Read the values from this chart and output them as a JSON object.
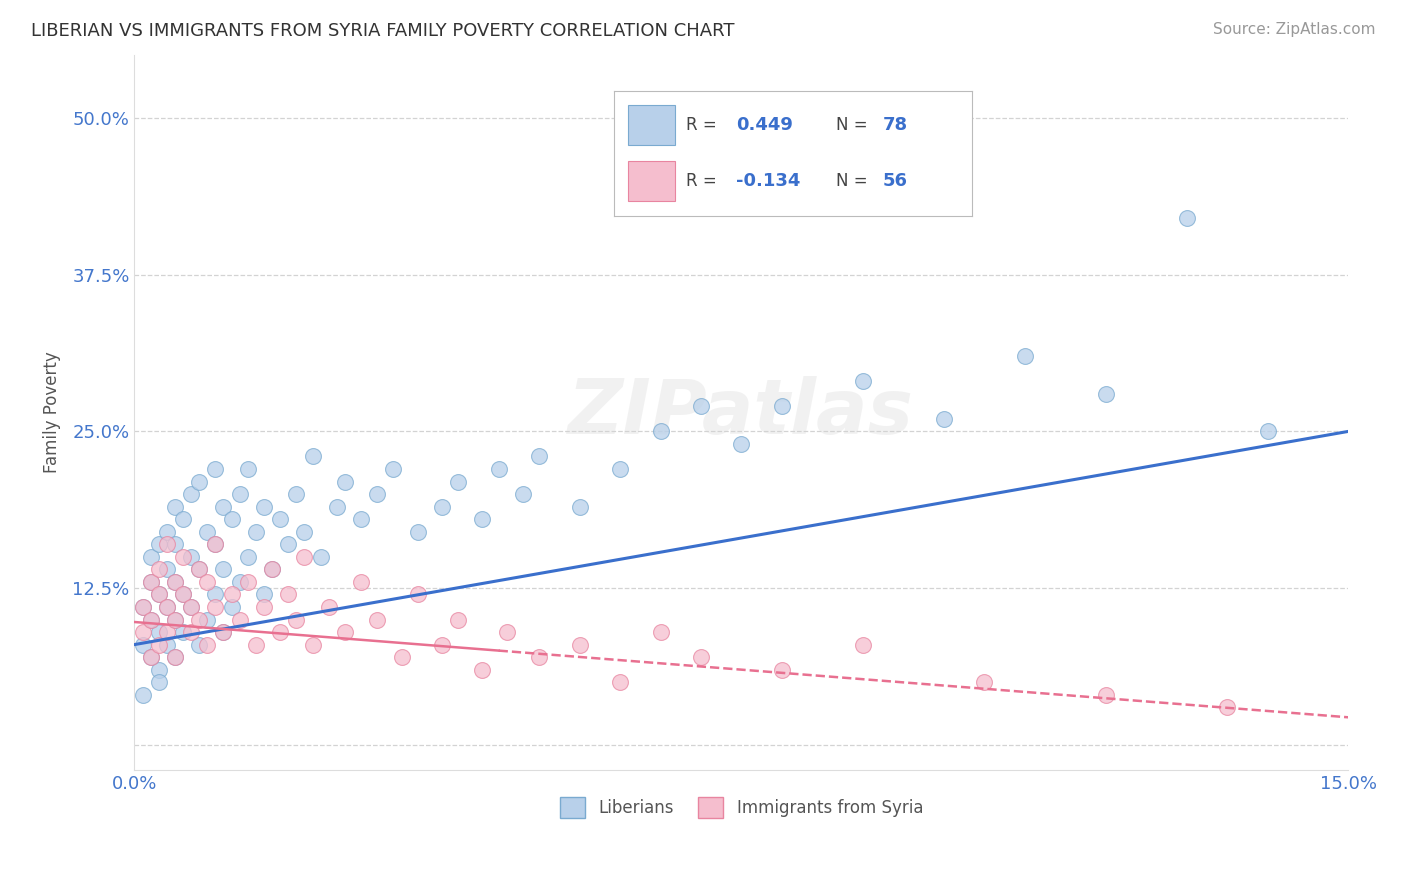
{
  "title": "LIBERIAN VS IMMIGRANTS FROM SYRIA FAMILY POVERTY CORRELATION CHART",
  "source": "Source: ZipAtlas.com",
  "ylabel_label": "Family Poverty",
  "xlim": [
    0.0,
    0.15
  ],
  "ylim": [
    -0.02,
    0.55
  ],
  "xtick_positions": [
    0.0,
    0.05,
    0.1,
    0.15
  ],
  "xticklabels": [
    "0.0%",
    "",
    "",
    "15.0%"
  ],
  "ytick_positions": [
    0.0,
    0.125,
    0.25,
    0.375,
    0.5
  ],
  "yticklabels": [
    "",
    "12.5%",
    "25.0%",
    "37.5%",
    "50.0%"
  ],
  "grid_color": "#c8c8c8",
  "background_color": "#ffffff",
  "watermark": "ZIPatlas",
  "series1_color": "#b8d0ea",
  "series1_edge": "#7aaad0",
  "series2_color": "#f5bece",
  "series2_edge": "#e885a0",
  "trend1_color": "#3a6fcc",
  "trend2_color": "#e87090",
  "legend_label1": "Liberians",
  "legend_label2": "Immigrants from Syria",
  "R1": 0.449,
  "N1": 78,
  "R2": -0.134,
  "N2": 56,
  "trend1_x0": 0.0,
  "trend1_y0": 0.08,
  "trend1_x1": 0.15,
  "trend1_y1": 0.25,
  "trend2_x0": 0.0,
  "trend2_y0": 0.098,
  "trend2_x1": 0.15,
  "trend2_y1": 0.022,
  "liberian_x": [
    0.001,
    0.001,
    0.001,
    0.002,
    0.002,
    0.002,
    0.002,
    0.003,
    0.003,
    0.003,
    0.003,
    0.003,
    0.004,
    0.004,
    0.004,
    0.004,
    0.005,
    0.005,
    0.005,
    0.005,
    0.005,
    0.006,
    0.006,
    0.006,
    0.007,
    0.007,
    0.007,
    0.008,
    0.008,
    0.008,
    0.009,
    0.009,
    0.01,
    0.01,
    0.01,
    0.011,
    0.011,
    0.011,
    0.012,
    0.012,
    0.013,
    0.013,
    0.014,
    0.014,
    0.015,
    0.016,
    0.016,
    0.017,
    0.018,
    0.019,
    0.02,
    0.021,
    0.022,
    0.023,
    0.025,
    0.026,
    0.028,
    0.03,
    0.032,
    0.035,
    0.038,
    0.04,
    0.043,
    0.045,
    0.048,
    0.05,
    0.055,
    0.06,
    0.065,
    0.07,
    0.075,
    0.08,
    0.09,
    0.1,
    0.11,
    0.12,
    0.13,
    0.14
  ],
  "liberian_y": [
    0.08,
    0.11,
    0.04,
    0.1,
    0.13,
    0.07,
    0.15,
    0.09,
    0.12,
    0.06,
    0.16,
    0.05,
    0.11,
    0.14,
    0.08,
    0.17,
    0.1,
    0.13,
    0.07,
    0.16,
    0.19,
    0.09,
    0.12,
    0.18,
    0.11,
    0.15,
    0.2,
    0.08,
    0.14,
    0.21,
    0.1,
    0.17,
    0.12,
    0.16,
    0.22,
    0.09,
    0.14,
    0.19,
    0.11,
    0.18,
    0.13,
    0.2,
    0.15,
    0.22,
    0.17,
    0.12,
    0.19,
    0.14,
    0.18,
    0.16,
    0.2,
    0.17,
    0.23,
    0.15,
    0.19,
    0.21,
    0.18,
    0.2,
    0.22,
    0.17,
    0.19,
    0.21,
    0.18,
    0.22,
    0.2,
    0.23,
    0.19,
    0.22,
    0.25,
    0.27,
    0.24,
    0.27,
    0.29,
    0.26,
    0.31,
    0.28,
    0.42,
    0.25
  ],
  "syria_x": [
    0.001,
    0.001,
    0.002,
    0.002,
    0.002,
    0.003,
    0.003,
    0.003,
    0.004,
    0.004,
    0.004,
    0.005,
    0.005,
    0.005,
    0.006,
    0.006,
    0.007,
    0.007,
    0.008,
    0.008,
    0.009,
    0.009,
    0.01,
    0.01,
    0.011,
    0.012,
    0.013,
    0.014,
    0.015,
    0.016,
    0.017,
    0.018,
    0.019,
    0.02,
    0.021,
    0.022,
    0.024,
    0.026,
    0.028,
    0.03,
    0.033,
    0.035,
    0.038,
    0.04,
    0.043,
    0.046,
    0.05,
    0.055,
    0.06,
    0.065,
    0.07,
    0.08,
    0.09,
    0.105,
    0.12,
    0.135
  ],
  "syria_y": [
    0.09,
    0.11,
    0.1,
    0.13,
    0.07,
    0.12,
    0.08,
    0.14,
    0.09,
    0.11,
    0.16,
    0.1,
    0.13,
    0.07,
    0.12,
    0.15,
    0.09,
    0.11,
    0.1,
    0.14,
    0.08,
    0.13,
    0.11,
    0.16,
    0.09,
    0.12,
    0.1,
    0.13,
    0.08,
    0.11,
    0.14,
    0.09,
    0.12,
    0.1,
    0.15,
    0.08,
    0.11,
    0.09,
    0.13,
    0.1,
    0.07,
    0.12,
    0.08,
    0.1,
    0.06,
    0.09,
    0.07,
    0.08,
    0.05,
    0.09,
    0.07,
    0.06,
    0.08,
    0.05,
    0.04,
    0.03
  ]
}
